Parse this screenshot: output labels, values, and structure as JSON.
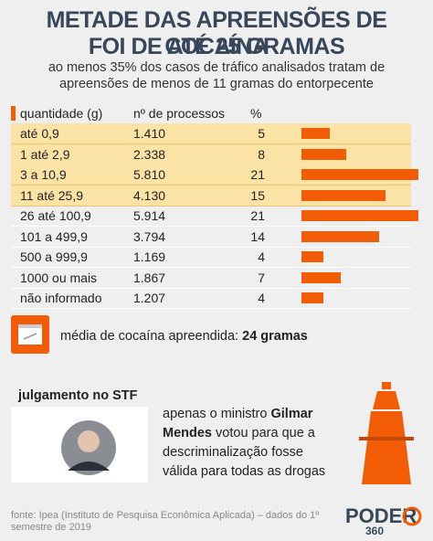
{
  "header": {
    "title": [
      "METADE DAS APREENSÕES DE COCAÍNA",
      "FOI DE ATÉ 25 GRAMAS"
    ],
    "subtitle": [
      "ao menos 35% dos casos de tráfico analisados tratam de",
      "apreensões de menos de 11 gramas do entorpecente"
    ]
  },
  "table": {
    "columns": [
      "quantidade (g)",
      "nº de processos",
      "%"
    ],
    "rows": [
      {
        "range": "até 0,9",
        "processes": "1.410",
        "pct": 5,
        "highlight": true
      },
      {
        "range": "1 até 2,9",
        "processes": "2.338",
        "pct": 8,
        "highlight": true
      },
      {
        "range": "3 a 10,9",
        "processes": "5.810",
        "pct": 21,
        "highlight": true
      },
      {
        "range": "11 até 25,9",
        "processes": "4.130",
        "pct": 15,
        "highlight": true
      },
      {
        "range": "26 até 100,9",
        "processes": "5.914",
        "pct": 21,
        "highlight": false
      },
      {
        "range": "101 a 499,9",
        "processes": "3.794",
        "pct": 14,
        "highlight": false
      },
      {
        "range": "500 a 999,9",
        "processes": "1.169",
        "pct": 4,
        "highlight": false
      },
      {
        "range": "1000 ou mais",
        "processes": "1.867",
        "pct": 7,
        "highlight": false
      },
      {
        "range": "não informado",
        "processes": "1.207",
        "pct": 4,
        "highlight": false
      }
    ]
  },
  "average": {
    "label": "média de cocaína apreendida:",
    "value": "24 gramas"
  },
  "stf": {
    "heading": "julgamento no STF",
    "text_before": "apenas o ministro",
    "name": "Gilmar Mendes",
    "text_after": "votou para que a descriminalização fosse válida para todas as drogas"
  },
  "footer": {
    "source": "fonte: Ipea (Instituto de Pesquisa Econômica Aplicada) – dados do 1º semestre de 2019",
    "logo": [
      "PODER",
      "360"
    ]
  }
}
